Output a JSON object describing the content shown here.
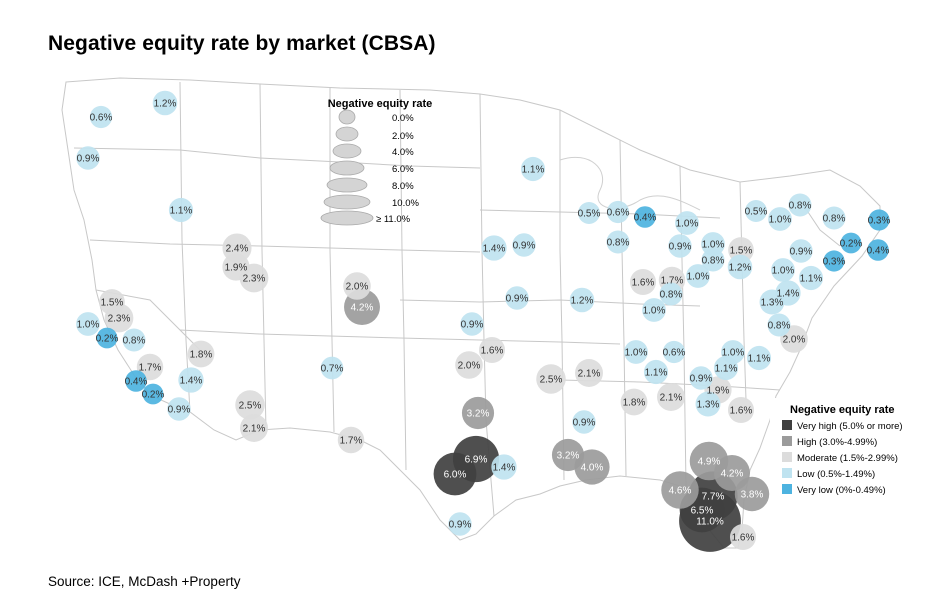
{
  "title": "Negative equity rate by market (CBSA)",
  "source": "Source: ICE, McDash +Property",
  "size_legend": {
    "title": "Negative equity rate",
    "items": [
      "0.0%",
      "2.0%",
      "4.0%",
      "6.0%",
      "8.0%",
      "10.0%",
      "≥ 11.0%"
    ]
  },
  "color_legend": {
    "title": "Negative equity rate",
    "items": [
      {
        "label": "Very high (5.0% or more)",
        "color": "#404040"
      },
      {
        "label": "High (3.0%-4.99%)",
        "color": "#9b9b9b"
      },
      {
        "label": "Moderate (1.5%-2.99%)",
        "color": "#dcdcdc"
      },
      {
        "label": "Low (0.5%-1.49%)",
        "color": "#bfe3f0"
      },
      {
        "label": "Very low (0%-0.49%)",
        "color": "#4db3e0"
      }
    ]
  },
  "markets": [
    {
      "label": "0.6%",
      "value": 0.6
    },
    {
      "label": "1.2%",
      "value": 1.2
    },
    {
      "label": "0.9%",
      "value": 0.9
    },
    {
      "label": "1.1%",
      "value": 1.1
    },
    {
      "label": "2.4%",
      "value": 2.4
    },
    {
      "label": "1.9%",
      "value": 1.9
    },
    {
      "label": "2.3%",
      "value": 2.3
    },
    {
      "label": "2.0%",
      "value": 2.0
    },
    {
      "label": "4.2%",
      "value": 4.2
    },
    {
      "label": "1.5%",
      "value": 1.5
    },
    {
      "label": "2.3%",
      "value": 2.3
    },
    {
      "label": "1.0%",
      "value": 1.0
    },
    {
      "label": "0.2%",
      "value": 0.2
    },
    {
      "label": "0.8%",
      "value": 0.8
    },
    {
      "label": "1.7%",
      "value": 1.7
    },
    {
      "label": "0.4%",
      "value": 0.4
    },
    {
      "label": "0.2%",
      "value": 0.2
    },
    {
      "label": "1.4%",
      "value": 1.4
    },
    {
      "label": "0.9%",
      "value": 0.9
    },
    {
      "label": "1.8%",
      "value": 1.8
    },
    {
      "label": "2.5%",
      "value": 2.5
    },
    {
      "label": "2.1%",
      "value": 2.1
    },
    {
      "label": "0.7%",
      "value": 0.7
    },
    {
      "label": "1.7%",
      "value": 1.7
    },
    {
      "label": "1.1%",
      "value": 1.1
    },
    {
      "label": "1.4%",
      "value": 1.4
    },
    {
      "label": "0.9%",
      "value": 0.9
    },
    {
      "label": "0.9%",
      "value": 0.9
    },
    {
      "label": "0.9%",
      "value": 0.9
    },
    {
      "label": "1.6%",
      "value": 1.6
    },
    {
      "label": "2.0%",
      "value": 2.0
    },
    {
      "label": "3.2%",
      "value": 3.2
    },
    {
      "label": "6.9%",
      "value": 6.9
    },
    {
      "label": "6.0%",
      "value": 6.0
    },
    {
      "label": "1.4%",
      "value": 1.4
    },
    {
      "label": "0.9%",
      "value": 0.9
    },
    {
      "label": "2.5%",
      "value": 2.5
    },
    {
      "label": "2.1%",
      "value": 2.1
    },
    {
      "label": "1.2%",
      "value": 1.2
    },
    {
      "label": "0.9%",
      "value": 0.9
    },
    {
      "label": "3.2%",
      "value": 3.2
    },
    {
      "label": "4.0%",
      "value": 4.0
    },
    {
      "label": "1.8%",
      "value": 1.8
    },
    {
      "label": "2.1%",
      "value": 2.1
    },
    {
      "label": "0.5%",
      "value": 0.5
    },
    {
      "label": "0.6%",
      "value": 0.6
    },
    {
      "label": "0.4%",
      "value": 0.4
    },
    {
      "label": "0.8%",
      "value": 0.8
    },
    {
      "label": "1.0%",
      "value": 1.0
    },
    {
      "label": "0.9%",
      "value": 0.9
    },
    {
      "label": "1.0%",
      "value": 1.0
    },
    {
      "label": "0.8%",
      "value": 0.8
    },
    {
      "label": "1.5%",
      "value": 1.5
    },
    {
      "label": "1.2%",
      "value": 1.2
    },
    {
      "label": "1.6%",
      "value": 1.6
    },
    {
      "label": "1.7%",
      "value": 1.7
    },
    {
      "label": "1.0%",
      "value": 1.0
    },
    {
      "label": "0.8%",
      "value": 0.8
    },
    {
      "label": "1.0%",
      "value": 1.0
    },
    {
      "label": "1.0%",
      "value": 1.0
    },
    {
      "label": "0.6%",
      "value": 0.6
    },
    {
      "label": "1.1%",
      "value": 1.1
    },
    {
      "label": "0.9%",
      "value": 0.9
    },
    {
      "label": "1.9%",
      "value": 1.9
    },
    {
      "label": "1.3%",
      "value": 1.3
    },
    {
      "label": "1.0%",
      "value": 1.0
    },
    {
      "label": "1.1%",
      "value": 1.1
    },
    {
      "label": "1.1%",
      "value": 1.1
    },
    {
      "label": "1.6%",
      "value": 1.6
    },
    {
      "label": "0.5%",
      "value": 0.5
    },
    {
      "label": "1.0%",
      "value": 1.0
    },
    {
      "label": "0.8%",
      "value": 0.8
    },
    {
      "label": "0.8%",
      "value": 0.8
    },
    {
      "label": "0.3%",
      "value": 0.3
    },
    {
      "label": "0.2%",
      "value": 0.2
    },
    {
      "label": "0.4%",
      "value": 0.4
    },
    {
      "label": "0.3%",
      "value": 0.3
    },
    {
      "label": "0.9%",
      "value": 0.9
    },
    {
      "label": "1.0%",
      "value": 1.0
    },
    {
      "label": "1.1%",
      "value": 1.1
    },
    {
      "label": "1.4%",
      "value": 1.4
    },
    {
      "label": "1.3%",
      "value": 1.3
    },
    {
      "label": "0.8%",
      "value": 0.8
    },
    {
      "label": "2.0%",
      "value": 2.0
    },
    {
      "label": "4.9%",
      "value": 4.9
    },
    {
      "label": "4.2%",
      "value": 4.2
    },
    {
      "label": "4.6%",
      "value": 4.6
    },
    {
      "label": "7.7%",
      "value": 7.7
    },
    {
      "label": "3.8%",
      "value": 3.8
    },
    {
      "label": "6.5%",
      "value": 6.5
    },
    {
      "label": "11.0%",
      "value": 11.0
    },
    {
      "label": "1.6%",
      "value": 1.6
    }
  ]
}
